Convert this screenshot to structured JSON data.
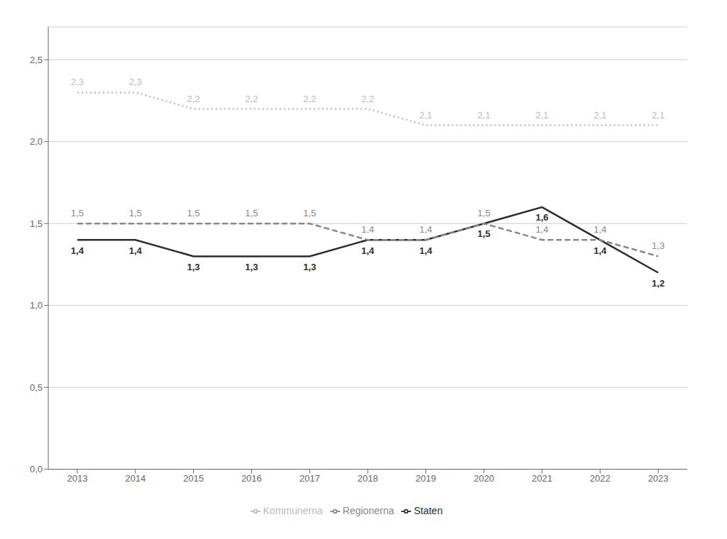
{
  "chart_data": {
    "type": "line",
    "x": [
      2013,
      2014,
      2015,
      2016,
      2017,
      2018,
      2019,
      2020,
      2021,
      2022,
      2023
    ],
    "series": [
      {
        "name": "Staten",
        "color": "#2c2c2c",
        "line_style": "solid",
        "values": [
          1.4,
          1.4,
          1.3,
          1.3,
          1.3,
          1.4,
          1.4,
          1.5,
          1.6,
          1.4,
          1.2
        ],
        "value_labels": [
          "1,4",
          "1,4",
          "1,3",
          "1,3",
          "1,3",
          "1,4",
          "1,4",
          "1,5",
          "1,6",
          "1,4",
          "1,2"
        ]
      },
      {
        "name": "Regionerna",
        "color": "#888888",
        "line_style": "dashed",
        "values": [
          1.5,
          1.5,
          1.5,
          1.5,
          1.5,
          1.4,
          1.4,
          1.5,
          1.4,
          1.4,
          1.3
        ],
        "value_labels": [
          "1,5",
          "1,5",
          "1,5",
          "1,5",
          "1,5",
          "1,4",
          "1,4",
          "1,5",
          "1,4",
          "1,4",
          "1,3"
        ]
      },
      {
        "name": "Kommunerna",
        "color": "#bbbbbb",
        "line_style": "dotted",
        "values": [
          2.3,
          2.3,
          2.2,
          2.2,
          2.2,
          2.2,
          2.1,
          2.1,
          2.1,
          2.1,
          2.1
        ],
        "value_labels": [
          "2,3",
          "2,3",
          "2,2",
          "2,2",
          "2,2",
          "2,2",
          "2,1",
          "2,1",
          "2,1",
          "2,1",
          "2,1"
        ]
      }
    ],
    "xlim": [
      2012.5,
      2023.5
    ],
    "xticks": [
      2013,
      2014,
      2015,
      2016,
      2017,
      2018,
      2019,
      2020,
      2021,
      2022,
      2023
    ],
    "ylim": [
      0.0,
      2.7
    ],
    "yticks": [
      {
        "value": 0.0,
        "label": "0,0"
      },
      {
        "value": 0.5,
        "label": "0,5"
      },
      {
        "value": 1.0,
        "label": "1,0"
      },
      {
        "value": 1.5,
        "label": "1,5"
      },
      {
        "value": 2.0,
        "label": "2,0"
      },
      {
        "value": 2.5,
        "label": "2,5"
      }
    ],
    "grid": true,
    "legend": "bottom",
    "data_labels": true
  }
}
